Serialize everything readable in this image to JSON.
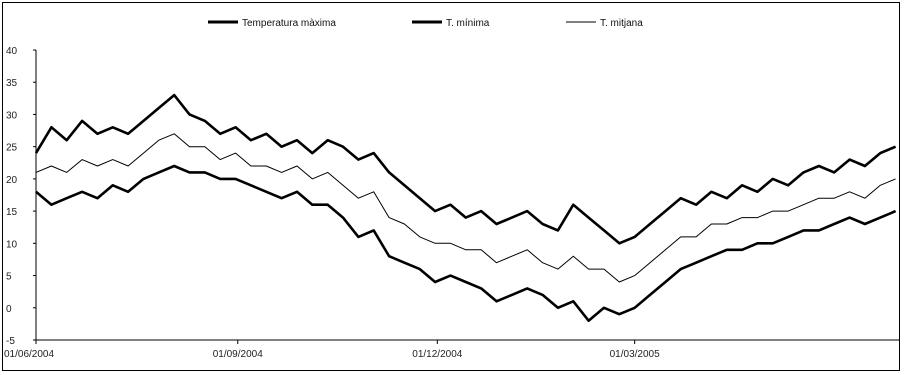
{
  "chart_data": {
    "type": "line",
    "title": "",
    "xlabel": "",
    "ylabel": "",
    "x_range": [
      "2004-06-01",
      "2005-06-30"
    ],
    "ylim": [
      -5,
      40
    ],
    "y_ticks": [
      -5,
      0,
      5,
      10,
      15,
      20,
      25,
      30,
      35,
      40
    ],
    "x_ticks": [
      {
        "date": "2004-06-01",
        "label": "01/06/2004"
      },
      {
        "date": "2004-09-01",
        "label": "01/09/2004"
      },
      {
        "date": "2004-12-01",
        "label": "01/12/2004"
      },
      {
        "date": "2005-03-01",
        "label": "01/03/2005"
      }
    ],
    "grid": false,
    "legend_position": "top",
    "series": [
      {
        "name": "Temperatura màxima",
        "style": "thick",
        "color": "#000000",
        "points": [
          [
            "2004-06-01",
            24
          ],
          [
            "2004-06-08",
            28
          ],
          [
            "2004-06-15",
            26
          ],
          [
            "2004-06-22",
            29
          ],
          [
            "2004-06-29",
            27
          ],
          [
            "2004-07-06",
            28
          ],
          [
            "2004-07-13",
            27
          ],
          [
            "2004-07-20",
            29
          ],
          [
            "2004-07-27",
            31
          ],
          [
            "2004-08-03",
            33
          ],
          [
            "2004-08-10",
            30
          ],
          [
            "2004-08-17",
            29
          ],
          [
            "2004-08-24",
            27
          ],
          [
            "2004-08-31",
            28
          ],
          [
            "2004-09-07",
            26
          ],
          [
            "2004-09-14",
            27
          ],
          [
            "2004-09-21",
            25
          ],
          [
            "2004-09-28",
            26
          ],
          [
            "2004-10-05",
            24
          ],
          [
            "2004-10-12",
            26
          ],
          [
            "2004-10-19",
            25
          ],
          [
            "2004-10-26",
            23
          ],
          [
            "2004-11-02",
            24
          ],
          [
            "2004-11-09",
            21
          ],
          [
            "2004-11-16",
            19
          ],
          [
            "2004-11-23",
            17
          ],
          [
            "2004-11-30",
            15
          ],
          [
            "2004-12-07",
            16
          ],
          [
            "2004-12-14",
            14
          ],
          [
            "2004-12-21",
            15
          ],
          [
            "2004-12-28",
            13
          ],
          [
            "2005-01-04",
            14
          ],
          [
            "2005-01-11",
            15
          ],
          [
            "2005-01-18",
            13
          ],
          [
            "2005-01-25",
            12
          ],
          [
            "2005-02-01",
            16
          ],
          [
            "2005-02-08",
            14
          ],
          [
            "2005-02-15",
            12
          ],
          [
            "2005-02-22",
            10
          ],
          [
            "2005-03-01",
            11
          ],
          [
            "2005-03-08",
            13
          ],
          [
            "2005-03-15",
            15
          ],
          [
            "2005-03-22",
            17
          ],
          [
            "2005-03-29",
            16
          ],
          [
            "2005-04-05",
            18
          ],
          [
            "2005-04-12",
            17
          ],
          [
            "2005-04-19",
            19
          ],
          [
            "2005-04-26",
            18
          ],
          [
            "2005-05-03",
            20
          ],
          [
            "2005-05-10",
            19
          ],
          [
            "2005-05-17",
            21
          ],
          [
            "2005-05-24",
            22
          ],
          [
            "2005-05-31",
            21
          ],
          [
            "2005-06-07",
            23
          ],
          [
            "2005-06-14",
            22
          ],
          [
            "2005-06-21",
            24
          ],
          [
            "2005-06-28",
            25
          ]
        ]
      },
      {
        "name": "T. mínima",
        "style": "thick",
        "color": "#000000",
        "points": [
          [
            "2004-06-01",
            18
          ],
          [
            "2004-06-08",
            16
          ],
          [
            "2004-06-15",
            17
          ],
          [
            "2004-06-22",
            18
          ],
          [
            "2004-06-29",
            17
          ],
          [
            "2004-07-06",
            19
          ],
          [
            "2004-07-13",
            18
          ],
          [
            "2004-07-20",
            20
          ],
          [
            "2004-07-27",
            21
          ],
          [
            "2004-08-03",
            22
          ],
          [
            "2004-08-10",
            21
          ],
          [
            "2004-08-17",
            21
          ],
          [
            "2004-08-24",
            20
          ],
          [
            "2004-08-31",
            20
          ],
          [
            "2004-09-07",
            19
          ],
          [
            "2004-09-14",
            18
          ],
          [
            "2004-09-21",
            17
          ],
          [
            "2004-09-28",
            18
          ],
          [
            "2004-10-05",
            16
          ],
          [
            "2004-10-12",
            16
          ],
          [
            "2004-10-19",
            14
          ],
          [
            "2004-10-26",
            11
          ],
          [
            "2004-11-02",
            12
          ],
          [
            "2004-11-09",
            8
          ],
          [
            "2004-11-16",
            7
          ],
          [
            "2004-11-23",
            6
          ],
          [
            "2004-11-30",
            4
          ],
          [
            "2004-12-07",
            5
          ],
          [
            "2004-12-14",
            4
          ],
          [
            "2004-12-21",
            3
          ],
          [
            "2004-12-28",
            1
          ],
          [
            "2005-01-04",
            2
          ],
          [
            "2005-01-11",
            3
          ],
          [
            "2005-01-18",
            2
          ],
          [
            "2005-01-25",
            0
          ],
          [
            "2005-02-01",
            1
          ],
          [
            "2005-02-08",
            -2
          ],
          [
            "2005-02-15",
            0
          ],
          [
            "2005-02-22",
            -1
          ],
          [
            "2005-03-01",
            0
          ],
          [
            "2005-03-08",
            2
          ],
          [
            "2005-03-15",
            4
          ],
          [
            "2005-03-22",
            6
          ],
          [
            "2005-03-29",
            7
          ],
          [
            "2005-04-05",
            8
          ],
          [
            "2005-04-12",
            9
          ],
          [
            "2005-04-19",
            9
          ],
          [
            "2005-04-26",
            10
          ],
          [
            "2005-05-03",
            10
          ],
          [
            "2005-05-10",
            11
          ],
          [
            "2005-05-17",
            12
          ],
          [
            "2005-05-24",
            12
          ],
          [
            "2005-05-31",
            13
          ],
          [
            "2005-06-07",
            14
          ],
          [
            "2005-06-14",
            13
          ],
          [
            "2005-06-21",
            14
          ],
          [
            "2005-06-28",
            15
          ]
        ]
      },
      {
        "name": "T. mitjana",
        "style": "thin",
        "color": "#000000",
        "points": [
          [
            "2004-06-01",
            21
          ],
          [
            "2004-06-08",
            22
          ],
          [
            "2004-06-15",
            21
          ],
          [
            "2004-06-22",
            23
          ],
          [
            "2004-06-29",
            22
          ],
          [
            "2004-07-06",
            23
          ],
          [
            "2004-07-13",
            22
          ],
          [
            "2004-07-20",
            24
          ],
          [
            "2004-07-27",
            26
          ],
          [
            "2004-08-03",
            27
          ],
          [
            "2004-08-10",
            25
          ],
          [
            "2004-08-17",
            25
          ],
          [
            "2004-08-24",
            23
          ],
          [
            "2004-08-31",
            24
          ],
          [
            "2004-09-07",
            22
          ],
          [
            "2004-09-14",
            22
          ],
          [
            "2004-09-21",
            21
          ],
          [
            "2004-09-28",
            22
          ],
          [
            "2004-10-05",
            20
          ],
          [
            "2004-10-12",
            21
          ],
          [
            "2004-10-19",
            19
          ],
          [
            "2004-10-26",
            17
          ],
          [
            "2004-11-02",
            18
          ],
          [
            "2004-11-09",
            14
          ],
          [
            "2004-11-16",
            13
          ],
          [
            "2004-11-23",
            11
          ],
          [
            "2004-11-30",
            10
          ],
          [
            "2004-12-07",
            10
          ],
          [
            "2004-12-14",
            9
          ],
          [
            "2004-12-21",
            9
          ],
          [
            "2004-12-28",
            7
          ],
          [
            "2005-01-04",
            8
          ],
          [
            "2005-01-11",
            9
          ],
          [
            "2005-01-18",
            7
          ],
          [
            "2005-01-25",
            6
          ],
          [
            "2005-02-01",
            8
          ],
          [
            "2005-02-08",
            6
          ],
          [
            "2005-02-15",
            6
          ],
          [
            "2005-02-22",
            4
          ],
          [
            "2005-03-01",
            5
          ],
          [
            "2005-03-08",
            7
          ],
          [
            "2005-03-15",
            9
          ],
          [
            "2005-03-22",
            11
          ],
          [
            "2005-03-29",
            11
          ],
          [
            "2005-04-05",
            13
          ],
          [
            "2005-04-12",
            13
          ],
          [
            "2005-04-19",
            14
          ],
          [
            "2005-04-26",
            14
          ],
          [
            "2005-05-03",
            15
          ],
          [
            "2005-05-10",
            15
          ],
          [
            "2005-05-17",
            16
          ],
          [
            "2005-05-24",
            17
          ],
          [
            "2005-05-31",
            17
          ],
          [
            "2005-06-07",
            18
          ],
          [
            "2005-06-14",
            17
          ],
          [
            "2005-06-21",
            19
          ],
          [
            "2005-06-28",
            20
          ]
        ]
      }
    ]
  }
}
